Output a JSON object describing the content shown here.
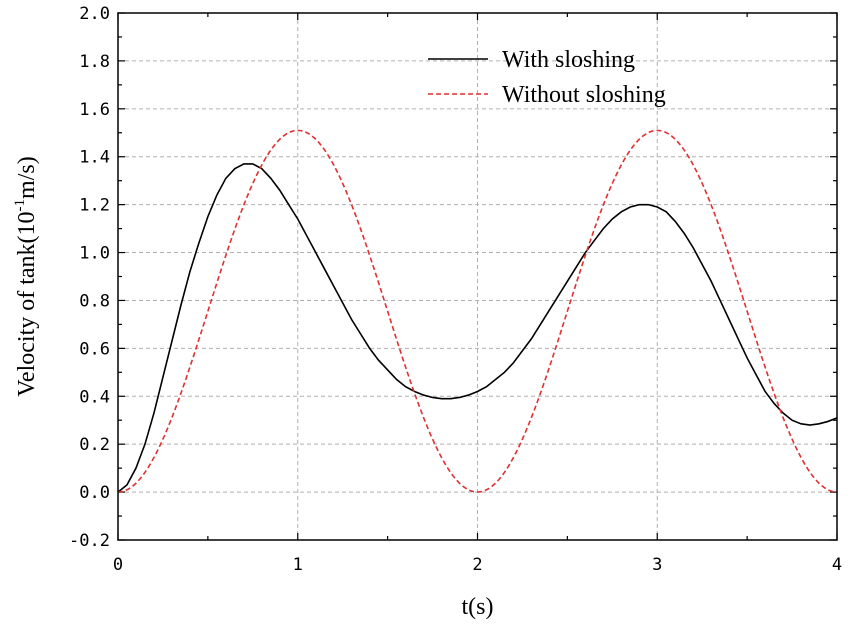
{
  "chart_data": {
    "type": "line",
    "xlabel": "t(s)",
    "ylabel": {
      "prefix": "Velocity of tank(10",
      "exponent": "-1",
      "suffix": "m/s)"
    },
    "xlim": [
      0,
      4
    ],
    "ylim": [
      -0.2,
      2.0
    ],
    "xticks": [
      0,
      1,
      2,
      3,
      4
    ],
    "xtick_labels": [
      "0",
      "1",
      "2",
      "3",
      "4"
    ],
    "yticks": [
      -0.2,
      0.0,
      0.2,
      0.4,
      0.6,
      0.8,
      1.0,
      1.2,
      1.4,
      1.6,
      1.8,
      2.0
    ],
    "ytick_labels": [
      "-0.2",
      "0.0",
      "0.2",
      "0.4",
      "0.6",
      "0.8",
      "1.0",
      "1.2",
      "1.4",
      "1.6",
      "1.8",
      "2.0"
    ],
    "grid": true,
    "legend_position": "top-right",
    "series": [
      {
        "name": "With sloshing",
        "color": "#000000",
        "style": "solid",
        "x": [
          0,
          0.05,
          0.1,
          0.15,
          0.2,
          0.25,
          0.3,
          0.35,
          0.4,
          0.45,
          0.5,
          0.55,
          0.6,
          0.65,
          0.7,
          0.75,
          0.8,
          0.85,
          0.9,
          0.95,
          1.0,
          1.05,
          1.1,
          1.15,
          1.2,
          1.25,
          1.3,
          1.35,
          1.4,
          1.45,
          1.5,
          1.55,
          1.6,
          1.65,
          1.7,
          1.75,
          1.8,
          1.85,
          1.9,
          1.95,
          2.0,
          2.05,
          2.1,
          2.15,
          2.2,
          2.25,
          2.3,
          2.35,
          2.4,
          2.45,
          2.5,
          2.55,
          2.6,
          2.65,
          2.7,
          2.75,
          2.8,
          2.85,
          2.9,
          2.95,
          3.0,
          3.05,
          3.1,
          3.15,
          3.2,
          3.25,
          3.3,
          3.35,
          3.4,
          3.45,
          3.5,
          3.55,
          3.6,
          3.65,
          3.7,
          3.75,
          3.8,
          3.85,
          3.9,
          3.95,
          4.0
        ],
        "values": [
          0.0,
          0.03,
          0.1,
          0.2,
          0.33,
          0.48,
          0.63,
          0.78,
          0.92,
          1.04,
          1.15,
          1.24,
          1.31,
          1.35,
          1.37,
          1.37,
          1.35,
          1.31,
          1.26,
          1.2,
          1.14,
          1.07,
          1.0,
          0.93,
          0.86,
          0.79,
          0.72,
          0.66,
          0.6,
          0.55,
          0.51,
          0.47,
          0.44,
          0.42,
          0.405,
          0.395,
          0.39,
          0.39,
          0.395,
          0.405,
          0.42,
          0.44,
          0.47,
          0.5,
          0.54,
          0.59,
          0.64,
          0.7,
          0.76,
          0.82,
          0.88,
          0.94,
          1.0,
          1.05,
          1.1,
          1.14,
          1.17,
          1.19,
          1.2,
          1.2,
          1.19,
          1.17,
          1.13,
          1.08,
          1.02,
          0.95,
          0.88,
          0.8,
          0.72,
          0.64,
          0.56,
          0.49,
          0.42,
          0.37,
          0.33,
          0.3,
          0.285,
          0.28,
          0.285,
          0.295,
          0.31
        ]
      },
      {
        "name": "Without sloshing",
        "color": "#e03030",
        "style": "dashed",
        "amplitude": 1.51,
        "period": 2
      }
    ]
  }
}
